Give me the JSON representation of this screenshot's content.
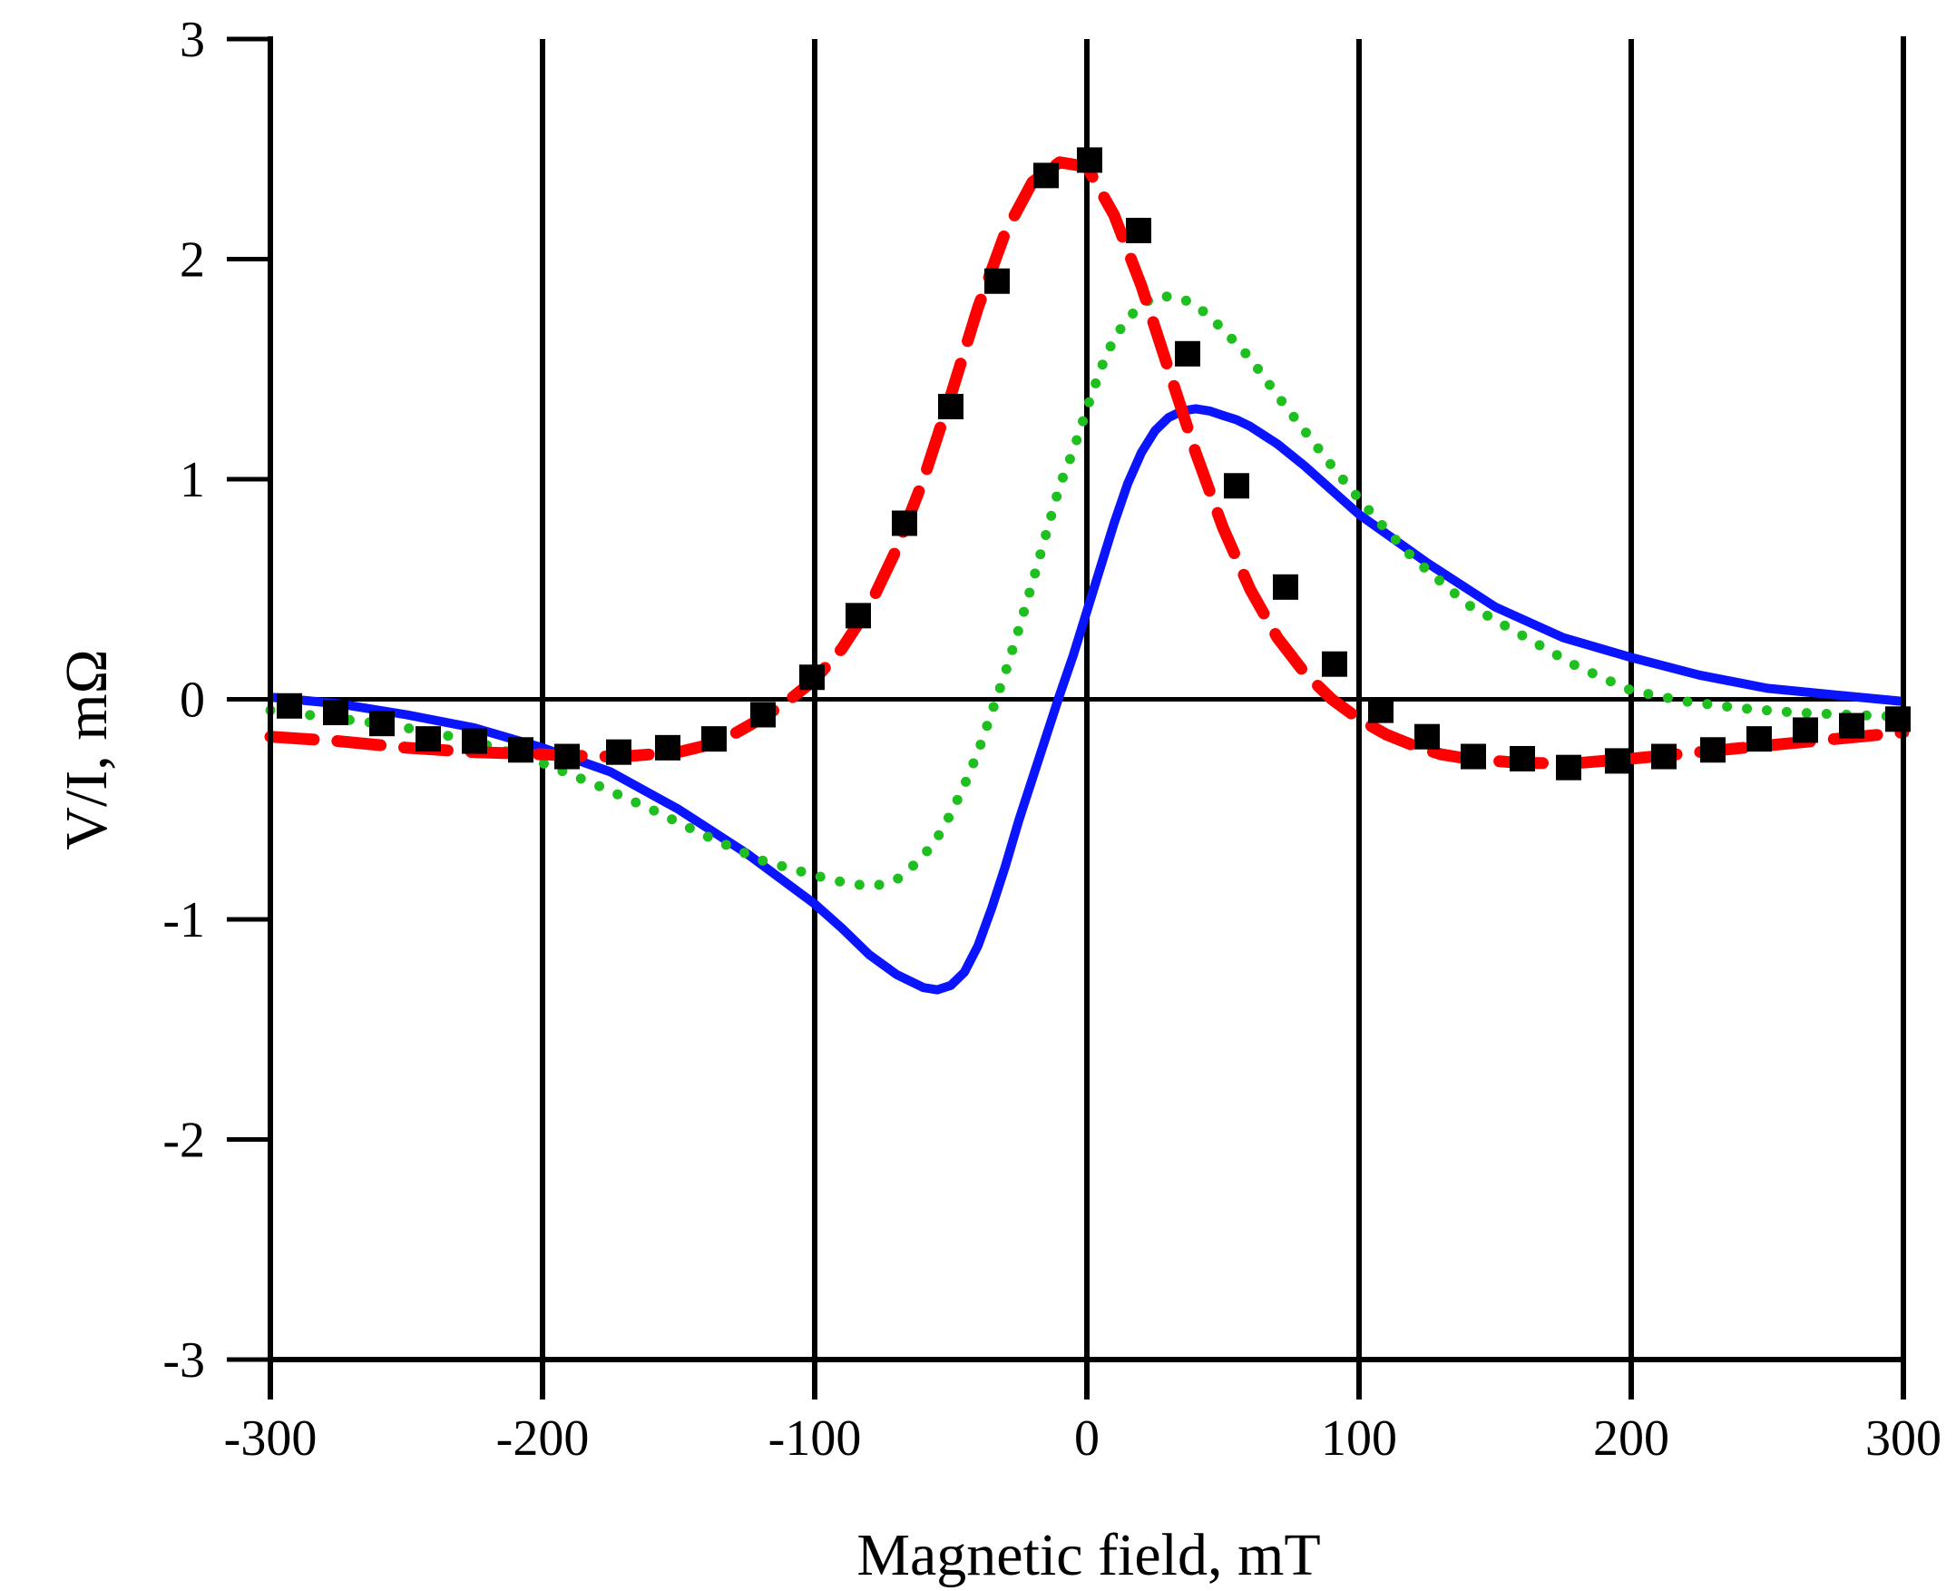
{
  "chart_data": {
    "type": "line",
    "title": "",
    "xlabel": "Magnetic field, mT",
    "ylabel": "V/I, mΩ",
    "xlim": [
      -300,
      300
    ],
    "ylim": [
      -3,
      3
    ],
    "xticks": [
      -300,
      -200,
      -100,
      0,
      100,
      200,
      300
    ],
    "yticks": [
      -3,
      -2,
      -1,
      0,
      1,
      2,
      3
    ],
    "xtick_labels": [
      "-300",
      "-200",
      "-100",
      "0",
      "100",
      "200",
      "300"
    ],
    "ytick_labels": [
      "-3",
      "-2",
      "-1",
      "0",
      "1",
      "2",
      "3"
    ],
    "grid": "vertical lines at x ticks, horizontal line at y = 0",
    "legend": "none",
    "series": [
      {
        "name": "solid-blue-curve",
        "style": "solid",
        "color": "#0a14ff",
        "x": [
          -300,
          -275,
          -250,
          -225,
          -200,
          -175,
          -150,
          -125,
          -100,
          -90,
          -80,
          -70,
          -60,
          -55,
          -50,
          -45,
          -40,
          -35,
          -30,
          -25,
          -20,
          -15,
          -10,
          -5,
          0,
          5,
          10,
          15,
          20,
          25,
          30,
          35,
          40,
          45,
          50,
          55,
          60,
          70,
          80,
          90,
          100,
          125,
          150,
          175,
          200,
          225,
          250,
          275,
          300
        ],
        "y": [
          0.01,
          -0.02,
          -0.07,
          -0.13,
          -0.22,
          -0.33,
          -0.5,
          -0.7,
          -0.93,
          -1.04,
          -1.16,
          -1.25,
          -1.31,
          -1.32,
          -1.3,
          -1.24,
          -1.12,
          -0.95,
          -0.76,
          -0.55,
          -0.36,
          -0.17,
          0.02,
          0.2,
          0.4,
          0.6,
          0.8,
          0.98,
          1.12,
          1.22,
          1.28,
          1.31,
          1.32,
          1.31,
          1.29,
          1.27,
          1.24,
          1.16,
          1.06,
          0.95,
          0.84,
          0.62,
          0.42,
          0.28,
          0.19,
          0.11,
          0.05,
          0.02,
          -0.01
        ]
      },
      {
        "name": "dotted-green-curve",
        "style": "dotted",
        "color": "#1fbf1f",
        "x": [
          -300,
          -280,
          -260,
          -240,
          -220,
          -200,
          -180,
          -160,
          -140,
          -120,
          -100,
          -90,
          -85,
          -80,
          -75,
          -70,
          -65,
          -60,
          -55,
          -50,
          -45,
          -40,
          -35,
          -30,
          -25,
          -20,
          -15,
          -10,
          -5,
          0,
          5,
          10,
          15,
          20,
          25,
          30,
          35,
          40,
          45,
          50,
          60,
          70,
          80,
          90,
          100,
          110,
          120,
          140,
          160,
          180,
          200,
          220,
          240,
          260,
          280,
          300
        ],
        "y": [
          -0.05,
          -0.08,
          -0.11,
          -0.15,
          -0.21,
          -0.29,
          -0.39,
          -0.5,
          -0.62,
          -0.73,
          -0.8,
          -0.83,
          -0.84,
          -0.85,
          -0.84,
          -0.82,
          -0.77,
          -0.71,
          -0.63,
          -0.52,
          -0.39,
          -0.24,
          -0.06,
          0.12,
          0.32,
          0.53,
          0.75,
          0.97,
          1.13,
          1.32,
          1.5,
          1.64,
          1.73,
          1.79,
          1.83,
          1.83,
          1.82,
          1.79,
          1.74,
          1.68,
          1.55,
          1.38,
          1.22,
          1.06,
          0.91,
          0.77,
          0.64,
          0.43,
          0.29,
          0.15,
          0.04,
          -0.01,
          -0.04,
          -0.06,
          -0.07,
          -0.08
        ]
      },
      {
        "name": "dashed-red-curve",
        "style": "dashed",
        "color": "#ff0000",
        "x": [
          -300,
          -275,
          -250,
          -225,
          -200,
          -180,
          -170,
          -160,
          -150,
          -140,
          -130,
          -120,
          -110,
          -100,
          -90,
          -80,
          -70,
          -60,
          -50,
          -40,
          -30,
          -20,
          -10,
          0,
          10,
          20,
          30,
          40,
          50,
          60,
          70,
          80,
          90,
          100,
          110,
          120,
          130,
          140,
          150,
          160,
          170,
          180,
          190,
          200,
          225,
          250,
          275,
          300
        ],
        "y": [
          -0.17,
          -0.19,
          -0.22,
          -0.24,
          -0.25,
          -0.26,
          -0.26,
          -0.25,
          -0.24,
          -0.21,
          -0.16,
          -0.09,
          -0.01,
          0.09,
          0.23,
          0.42,
          0.68,
          1.0,
          1.38,
          1.78,
          2.12,
          2.35,
          2.44,
          2.42,
          2.2,
          1.88,
          1.5,
          1.12,
          0.78,
          0.5,
          0.28,
          0.12,
          0.0,
          -0.09,
          -0.16,
          -0.21,
          -0.25,
          -0.27,
          -0.28,
          -0.29,
          -0.29,
          -0.29,
          -0.28,
          -0.27,
          -0.24,
          -0.21,
          -0.18,
          -0.15
        ]
      },
      {
        "name": "square-markers",
        "style": "markers",
        "color": "#000000",
        "x": [
          -293,
          -276,
          -259,
          -242,
          -225,
          -208,
          -191,
          -172,
          -154,
          -137,
          -119,
          -101,
          -84,
          -67,
          -50,
          -33,
          -15,
          1,
          19,
          37,
          55,
          73,
          91,
          108,
          125,
          142,
          160,
          177,
          195,
          212,
          230,
          247,
          264,
          281,
          298
        ],
        "y": [
          -0.03,
          -0.06,
          -0.11,
          -0.18,
          -0.19,
          -0.23,
          -0.26,
          -0.24,
          -0.22,
          -0.18,
          -0.07,
          0.1,
          0.38,
          0.8,
          1.33,
          1.9,
          2.38,
          2.45,
          2.13,
          1.57,
          0.97,
          0.51,
          0.16,
          -0.05,
          -0.17,
          -0.26,
          -0.27,
          -0.31,
          -0.28,
          -0.26,
          -0.23,
          -0.18,
          -0.14,
          -0.12,
          -0.09
        ]
      }
    ]
  }
}
